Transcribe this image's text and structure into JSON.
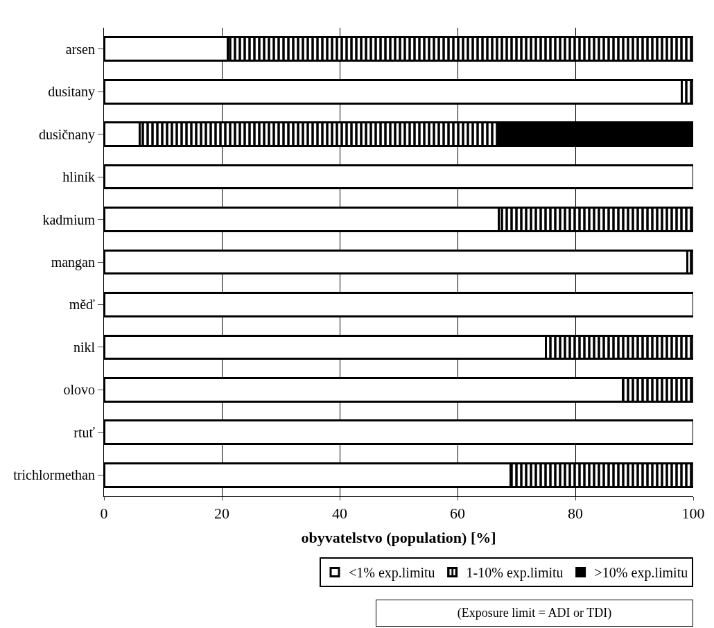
{
  "chart_data": {
    "type": "bar",
    "orientation": "horizontal",
    "stacked": true,
    "xlabel": "obyvatelstvo (population) [%]",
    "categories": [
      "arsen",
      "dusitany",
      "dusičnany",
      "hliník",
      "kadmium",
      "mangan",
      "měď",
      "nikl",
      "olovo",
      "rtuť",
      "trichlormethan"
    ],
    "series": [
      {
        "name": "<1% exp.limitu",
        "color": "#ffffff",
        "values": [
          21,
          98,
          6,
          100,
          67,
          99,
          100,
          75,
          88,
          100,
          69
        ]
      },
      {
        "name": "1-10% exp.limitu",
        "color": "#000000",
        "values": [
          79,
          2,
          61,
          0,
          33,
          1,
          0,
          25,
          12,
          0,
          31
        ]
      },
      {
        "name": ">10% exp.limitu",
        "color": "#000000",
        "values": [
          0,
          0,
          33,
          0,
          0,
          0,
          0,
          0,
          0,
          0,
          0
        ]
      }
    ],
    "xlim": [
      0,
      100
    ],
    "xticks": [
      0,
      20,
      40,
      60,
      80,
      100
    ],
    "grid": "x",
    "legend": "bottom",
    "annotations": [
      "(Exposure limit = ADI or TDI)"
    ]
  }
}
